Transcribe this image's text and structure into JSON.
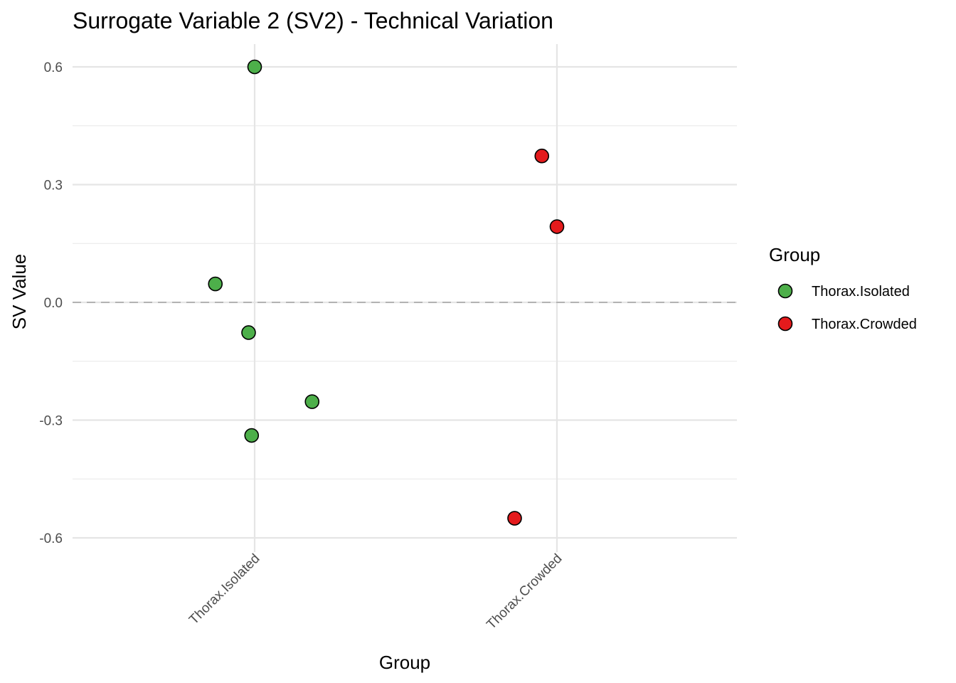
{
  "chart_data": {
    "type": "scatter",
    "title": "Surrogate Variable 2 (SV2) - Technical Variation",
    "xlabel": "Group",
    "ylabel": "SV Value",
    "categories": [
      "Thorax.Isolated",
      "Thorax.Crowded"
    ],
    "ylim": [
      -0.66,
      0.66
    ],
    "yticks": [
      -0.6,
      -0.3,
      0.0,
      0.3,
      0.6
    ],
    "ytick_labels": [
      "-0.6",
      "-0.3",
      "0.0",
      "0.3",
      "0.6"
    ],
    "reference_line": {
      "y": 0.0,
      "style": "dashed"
    },
    "grid": true,
    "legend": {
      "title": "Group",
      "position": "right",
      "entries": [
        {
          "label": "Thorax.Isolated",
          "color": "#4daf4a"
        },
        {
          "label": "Thorax.Crowded",
          "color": "#e41a1c"
        }
      ]
    },
    "series": [
      {
        "name": "Thorax.Isolated",
        "color": "#4daf4a",
        "points": [
          {
            "x": 1.0,
            "y": 0.6
          },
          {
            "x": 0.87,
            "y": 0.047
          },
          {
            "x": 0.98,
            "y": -0.077
          },
          {
            "x": 1.19,
            "y": -0.253
          },
          {
            "x": 0.99,
            "y": -0.339
          }
        ]
      },
      {
        "name": "Thorax.Crowded",
        "color": "#e41a1c",
        "points": [
          {
            "x": 1.95,
            "y": 0.373
          },
          {
            "x": 2.0,
            "y": 0.193
          },
          {
            "x": 1.86,
            "y": -0.55
          }
        ]
      }
    ]
  }
}
